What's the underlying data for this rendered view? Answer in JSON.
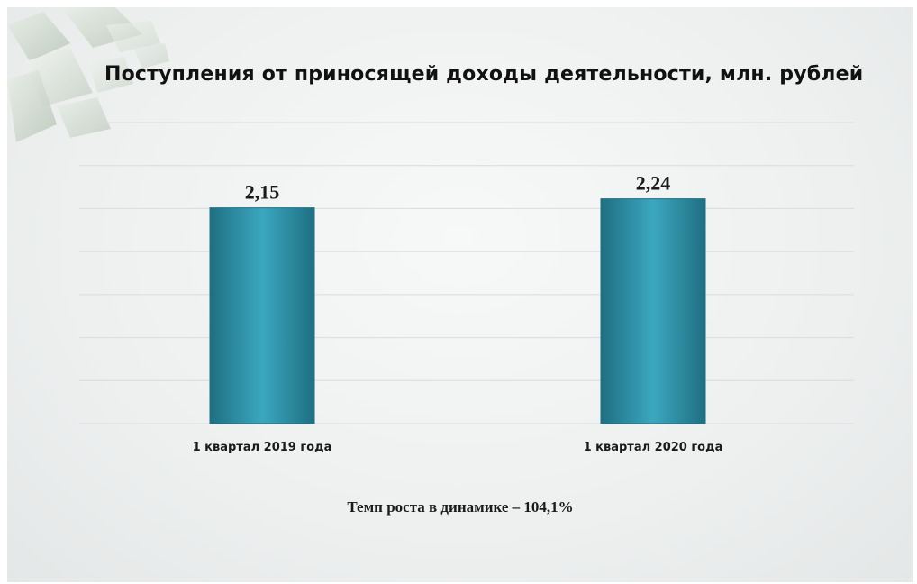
{
  "slide": {
    "title": "Поступления от приносящей доходы деятельности, млн. рублей",
    "footer": "Темп роста в динамике – 104,1%"
  },
  "colors": {
    "bar": "#2e8fa6",
    "bar_dark": "#1f6f82",
    "bar_light": "#3ba7bf",
    "grid": "#d9dcdc"
  },
  "chart_data": {
    "type": "bar",
    "title": "Поступления от приносящей доходы деятельности, млн. рублей",
    "categories": [
      "1 квартал 2019 года",
      "1 квартал 2020 года"
    ],
    "values": [
      2.15,
      2.24
    ],
    "data_labels": [
      "2,15",
      "2,24"
    ],
    "ylim": [
      0,
      3
    ],
    "grid": true,
    "legend": "none"
  }
}
